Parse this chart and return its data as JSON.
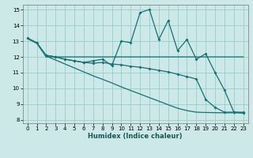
{
  "xlabel": "Humidex (Indice chaleur)",
  "background_color": "#cce8e8",
  "grid_color": "#99cccc",
  "line_color": "#1a7070",
  "xlim": [
    -0.5,
    23.5
  ],
  "ylim": [
    7.8,
    15.3
  ],
  "yticks": [
    8,
    9,
    10,
    11,
    12,
    13,
    14,
    15
  ],
  "xticks": [
    0,
    1,
    2,
    3,
    4,
    5,
    6,
    7,
    8,
    9,
    10,
    11,
    12,
    13,
    14,
    15,
    16,
    17,
    18,
    19,
    20,
    21,
    22,
    23
  ],
  "line1_x": [
    0,
    1,
    2,
    3,
    4,
    5,
    6,
    7,
    8,
    9,
    10,
    11,
    12,
    13,
    14,
    15,
    16,
    17,
    18,
    19,
    20,
    21,
    22,
    23
  ],
  "line1_y": [
    13.2,
    12.9,
    12.1,
    12.0,
    11.85,
    11.75,
    11.65,
    11.75,
    11.85,
    11.45,
    13.0,
    12.9,
    14.8,
    15.0,
    13.1,
    14.3,
    12.4,
    13.1,
    11.85,
    12.2,
    11.0,
    9.9,
    8.5,
    8.5
  ],
  "line2_x": [
    0,
    1,
    2,
    3,
    4,
    5,
    6,
    7,
    8,
    9,
    10,
    11,
    12,
    13,
    14,
    15,
    16,
    17,
    18,
    19,
    20,
    21,
    22,
    23
  ],
  "line2_y": [
    13.15,
    12.85,
    12.0,
    12.0,
    12.0,
    12.0,
    12.0,
    12.0,
    12.0,
    12.0,
    12.0,
    12.0,
    12.0,
    12.0,
    12.0,
    12.0,
    12.0,
    12.0,
    12.0,
    12.0,
    12.0,
    12.0,
    12.0,
    12.0
  ],
  "line3_x": [
    2,
    3,
    4,
    5,
    6,
    7,
    8,
    9,
    10,
    11,
    12,
    13,
    14,
    15,
    16,
    17,
    18,
    19,
    20,
    21,
    22,
    23
  ],
  "line3_y": [
    12.1,
    12.0,
    11.85,
    11.75,
    11.65,
    11.6,
    11.65,
    11.55,
    11.5,
    11.4,
    11.35,
    11.25,
    11.15,
    11.05,
    10.9,
    10.75,
    10.6,
    9.3,
    8.8,
    8.5,
    8.5,
    8.45
  ],
  "line4_x": [
    2,
    3,
    4,
    5,
    6,
    7,
    8,
    9,
    10,
    11,
    12,
    13,
    14,
    15,
    16,
    17,
    18,
    19,
    20,
    21,
    22,
    23
  ],
  "line4_y": [
    12.05,
    11.8,
    11.55,
    11.3,
    11.05,
    10.8,
    10.58,
    10.35,
    10.1,
    9.87,
    9.65,
    9.42,
    9.2,
    8.97,
    8.75,
    8.6,
    8.5,
    8.48,
    8.47,
    8.46,
    8.46,
    8.45
  ]
}
